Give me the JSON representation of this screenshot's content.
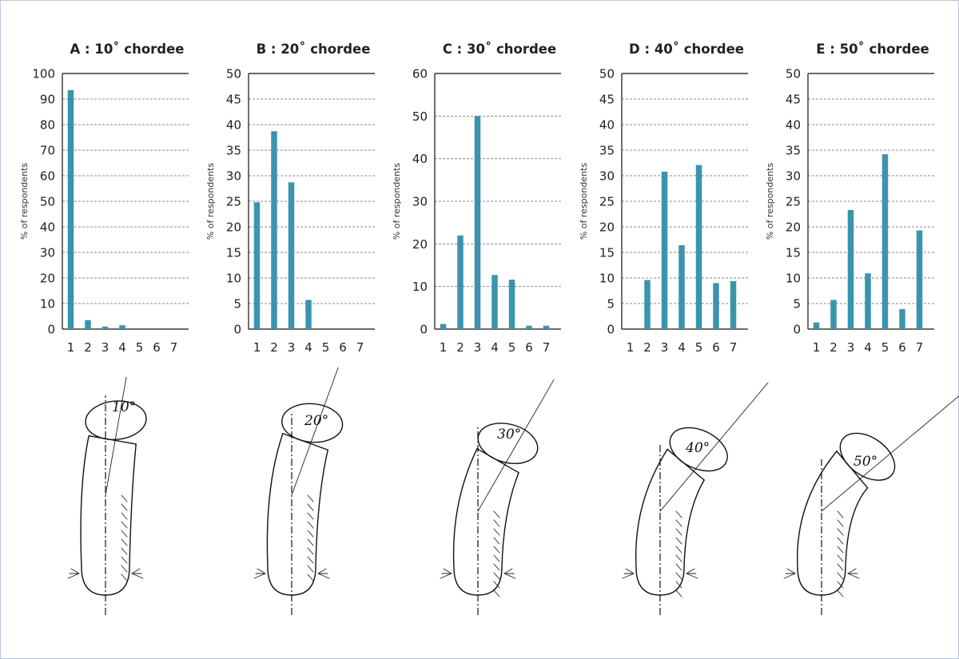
{
  "chart_data": [
    {
      "type": "bar",
      "title": "A : 10˚ chordee",
      "ylabel": "% of respondents",
      "categories": [
        "1",
        "2",
        "3",
        "4",
        "5",
        "6",
        "7"
      ],
      "values": [
        93.5,
        3.5,
        1.0,
        1.5,
        0,
        0,
        0
      ],
      "ylim": [
        0,
        100
      ],
      "yticks": [
        0,
        10,
        20,
        30,
        40,
        50,
        60,
        70,
        80,
        90,
        100
      ],
      "grid": true,
      "illustration_angle_label": "10°",
      "bend_angle": 10
    },
    {
      "type": "bar",
      "title": "B : 20˚ chordee",
      "ylabel": "% of respondents",
      "categories": [
        "1",
        "2",
        "3",
        "4",
        "5",
        "6",
        "7"
      ],
      "values": [
        24.8,
        38.7,
        28.7,
        5.7,
        0,
        0,
        0
      ],
      "ylim": [
        0,
        50
      ],
      "yticks": [
        0,
        5,
        10,
        15,
        20,
        25,
        30,
        35,
        40,
        45,
        50
      ],
      "grid": true,
      "illustration_angle_label": "20°",
      "bend_angle": 20
    },
    {
      "type": "bar",
      "title": "C : 30˚ chordee",
      "ylabel": "% of respondents",
      "categories": [
        "1",
        "2",
        "3",
        "4",
        "5",
        "6",
        "7"
      ],
      "values": [
        1.2,
        22.0,
        50.0,
        12.7,
        11.6,
        0.8,
        0.8
      ],
      "ylim": [
        0,
        60
      ],
      "yticks": [
        0,
        10,
        20,
        30,
        40,
        50,
        60
      ],
      "grid": true,
      "illustration_angle_label": "30°",
      "bend_angle": 30
    },
    {
      "type": "bar",
      "title": "D : 40˚ chordee",
      "ylabel": "% of respondents",
      "categories": [
        "1",
        "2",
        "3",
        "4",
        "5",
        "6",
        "7"
      ],
      "values": [
        0,
        9.6,
        30.8,
        16.4,
        32.1,
        9.0,
        9.4
      ],
      "ylim": [
        0,
        50
      ],
      "yticks": [
        0,
        5,
        10,
        15,
        20,
        25,
        30,
        35,
        40,
        45,
        50
      ],
      "grid": true,
      "illustration_angle_label": "40°",
      "bend_angle": 40
    },
    {
      "type": "bar",
      "title": "E : 50˚ chordee",
      "ylabel": "% of respondents",
      "categories": [
        "1",
        "2",
        "3",
        "4",
        "5",
        "6",
        "7"
      ],
      "values": [
        1.3,
        5.7,
        23.3,
        10.9,
        34.2,
        3.9,
        19.3
      ],
      "ylim": [
        0,
        50
      ],
      "yticks": [
        0,
        5,
        10,
        15,
        20,
        25,
        30,
        35,
        40,
        45,
        50
      ],
      "grid": true,
      "illustration_angle_label": "50°",
      "bend_angle": 50
    }
  ],
  "colors": {
    "bar": "#3b94ab",
    "grid": "#888888",
    "frame": "#b8c6dc"
  }
}
